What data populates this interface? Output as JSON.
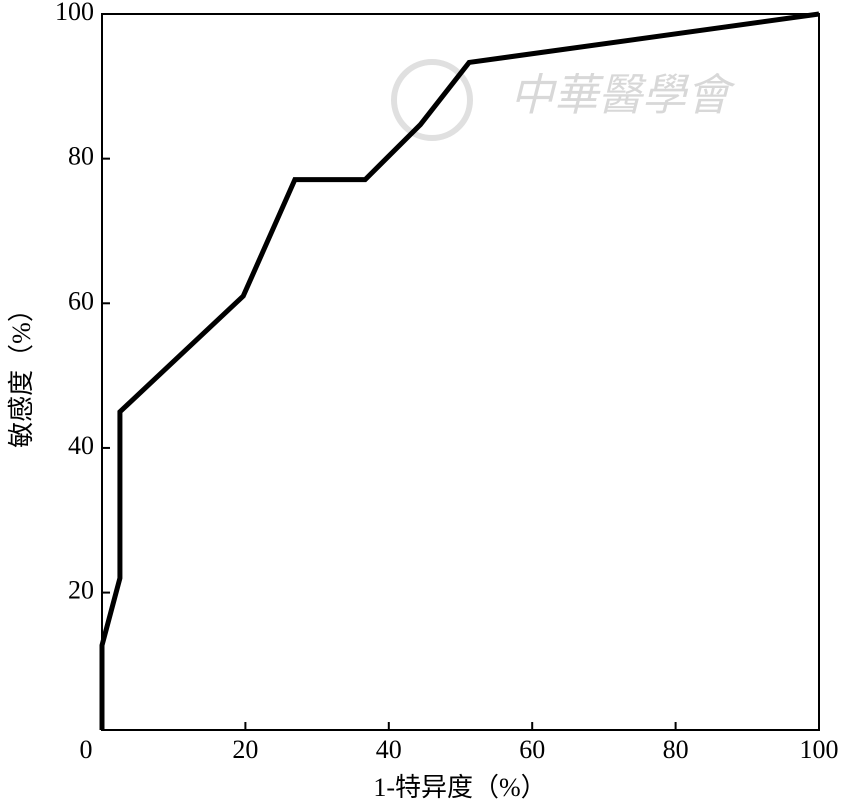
{
  "chart_data": {
    "type": "line",
    "x_label": "1-特异度（%）",
    "y_label": "敏感度（%）",
    "watermark": "中華醫學會",
    "x": [
      0,
      0,
      2.5,
      2.5,
      19.7,
      26.9,
      36.7,
      44.4,
      51.2,
      100
    ],
    "values": [
      1,
      12.7,
      22,
      45,
      61,
      77.1,
      77.1,
      84.7,
      93.3,
      100
    ],
    "color": "#000000",
    "xlim": [
      0,
      100
    ],
    "ylim": [
      1,
      100
    ],
    "xticks": [
      0,
      20,
      40,
      60,
      80,
      100
    ],
    "yticks": [
      20,
      40,
      60,
      80,
      100
    ]
  }
}
